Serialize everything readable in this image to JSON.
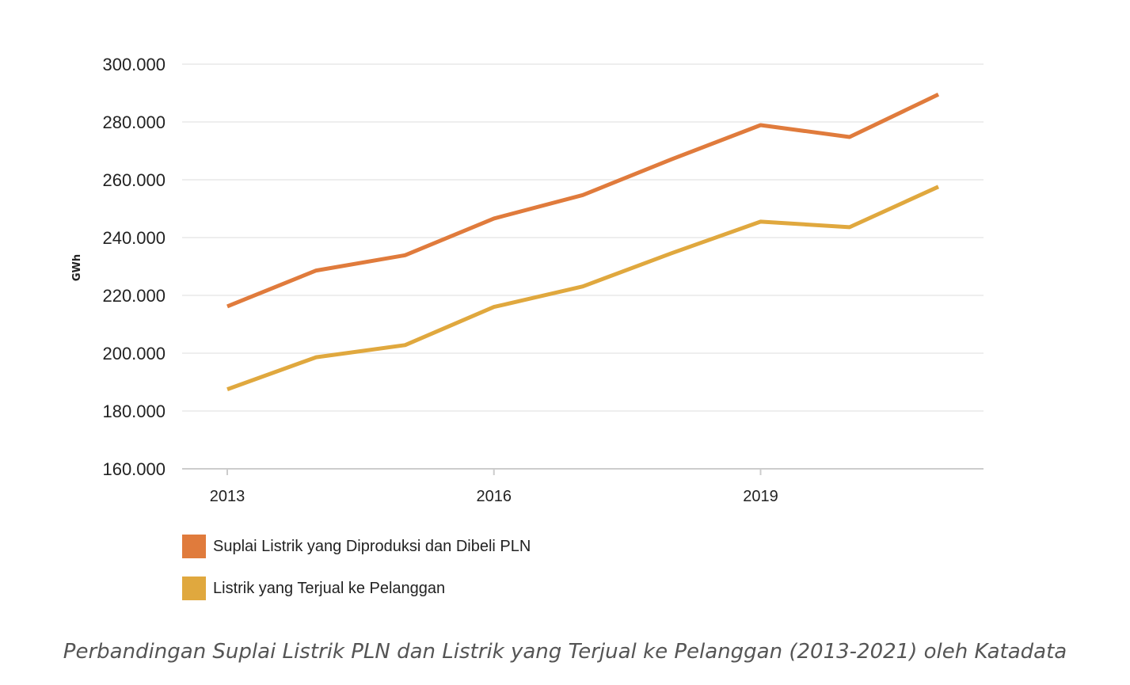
{
  "chart_data": {
    "type": "line",
    "title": "",
    "xlabel": "",
    "ylabel": "GWh",
    "x": [
      2013,
      2014,
      2015,
      2016,
      2017,
      2018,
      2019,
      2020,
      2021
    ],
    "x_ticks": [
      "2013",
      "2016",
      "2019"
    ],
    "y_ticks": [
      "160.000",
      "180.000",
      "200.000",
      "220.000",
      "240.000",
      "260.000",
      "280.000",
      "300.000"
    ],
    "ylim": [
      160000,
      300000
    ],
    "grid": true,
    "series": [
      {
        "name": "Suplai Listrik yang Diproduksi dan Dibeli PLN",
        "color": "#e07b3c",
        "values": [
          216200,
          228600,
          233900,
          246600,
          254700,
          267100,
          278900,
          274800,
          289500
        ]
      },
      {
        "name": "Listrik yang Terjual ke Pelanggan",
        "color": "#e0a83e",
        "values": [
          187500,
          198600,
          202800,
          216000,
          223100,
          234600,
          245500,
          243600,
          257600
        ]
      }
    ]
  },
  "caption": "Perbandingan Suplai Listrik PLN dan Listrik yang Terjual ke Pelanggan (2013-2021) oleh Katadata"
}
